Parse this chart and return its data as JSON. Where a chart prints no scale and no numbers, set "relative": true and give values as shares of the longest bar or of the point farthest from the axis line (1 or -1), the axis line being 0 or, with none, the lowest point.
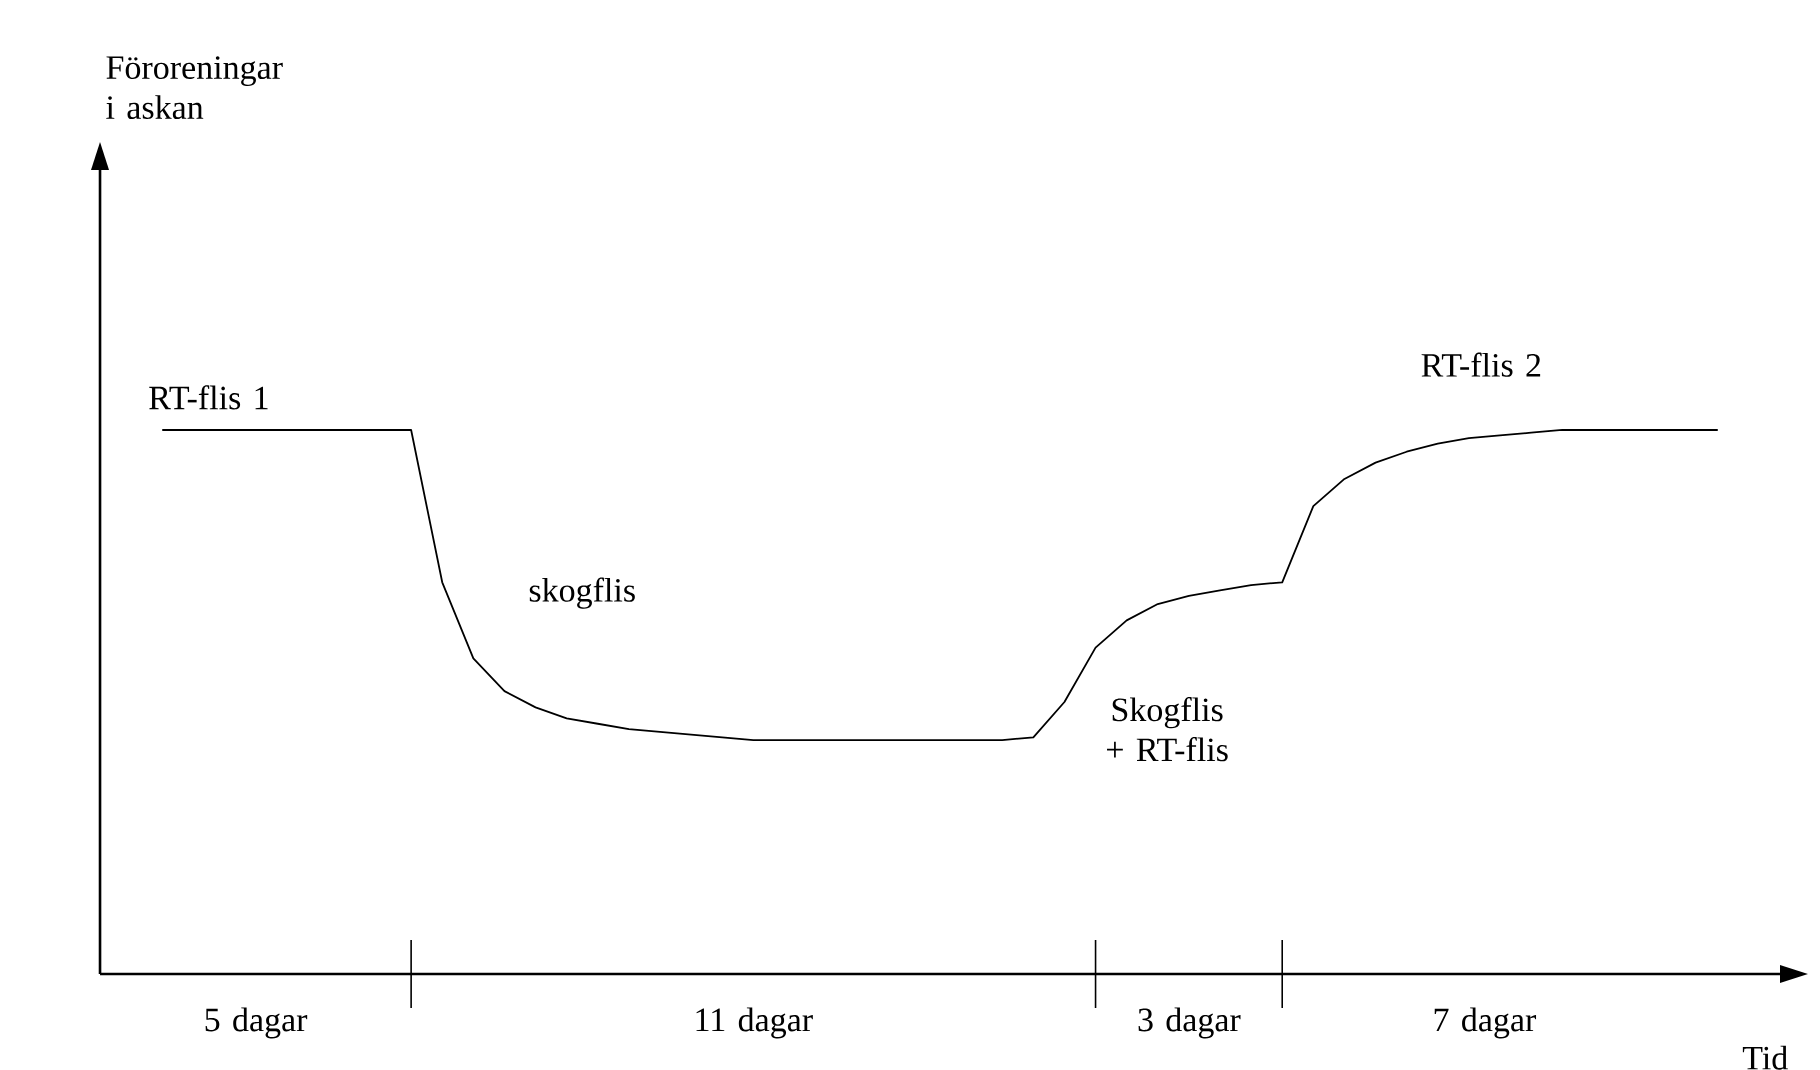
{
  "chart_data": {
    "type": "line",
    "relative": true,
    "xlabel": "Tid",
    "categories": [
      null,
      null,
      null,
      null,
      null,
      null,
      null,
      null,
      null,
      null,
      null,
      null,
      null,
      null,
      null,
      null,
      null,
      null,
      null,
      null,
      null,
      null,
      null,
      null,
      null,
      null,
      null,
      null,
      null,
      null,
      null,
      null,
      null,
      null,
      null,
      null,
      null,
      null,
      null,
      null,
      null,
      null,
      null,
      null,
      null,
      null,
      null,
      null,
      null,
      null,
      null
    ],
    "series": [
      {
        "color": "#000000",
        "values": [
          1,
          1,
          1,
          1,
          1,
          1,
          1,
          1,
          1,
          0.72,
          0.58,
          0.52,
          0.49,
          0.47,
          0.46,
          0.45,
          0.445,
          0.44,
          0.435,
          0.43,
          0.43,
          0.43,
          0.43,
          0.43,
          0.43,
          0.43,
          0.43,
          0.43,
          0.435,
          0.5,
          0.6,
          0.65,
          0.68,
          0.695,
          0.705,
          0.715,
          0.72,
          0.86,
          0.91,
          0.94,
          0.96,
          0.975,
          0.985,
          0.99,
          0.995,
          1,
          1,
          1,
          1,
          1,
          1
        ]
      }
    ],
    "annotations": [
      "Föroreningar i askan",
      "RT-flis 1",
      "skogflis",
      "Skogflis + RT-flis",
      "RT-flis 2",
      "5 dagar",
      "11 dagar",
      "3 dagar",
      "7 dagar"
    ]
  }
}
